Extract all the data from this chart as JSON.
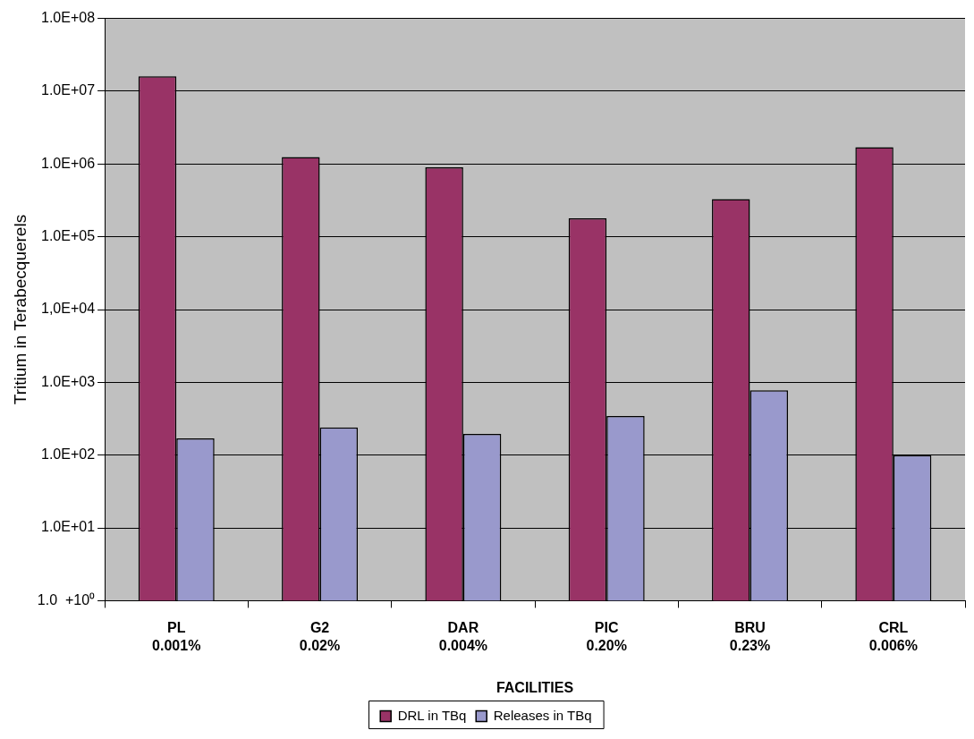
{
  "chart_data": {
    "type": "bar",
    "xlabel": "FACILITIES",
    "ylabel": "Tritium in Terabecquerels",
    "categories": [
      "PL\n0.001%",
      "G2\n0.02%",
      "DAR\n0.004%",
      "PIC\n0.20%",
      "BRU\n0.23%",
      "CRL\n0.006%"
    ],
    "series": [
      {
        "name": "DRL in TBq",
        "color": "#993366",
        "values": [
          16000000,
          1250000,
          900000,
          180000,
          330000,
          1700000
        ]
      },
      {
        "name": "Releases in TBq",
        "color": "#9999cc",
        "values": [
          170,
          240,
          195,
          345,
          780,
          100
        ]
      }
    ],
    "log": true,
    "ylim": [
      1,
      100000000
    ],
    "yticks": [
      {
        "value": 1,
        "label": "1.0  +10⁰"
      },
      {
        "value": 10,
        "label": "1.0E+01"
      },
      {
        "value": 100,
        "label": "1.0E+02"
      },
      {
        "value": 1000,
        "label": "1.0E+03"
      },
      {
        "value": 10000,
        "label": "1,0E+04"
      },
      {
        "value": 100000,
        "label": "1.0E+05"
      },
      {
        "value": 1000000,
        "label": "1.0E+06"
      },
      {
        "value": 10000000,
        "label": "1.0E+07"
      },
      {
        "value": 100000000,
        "label": "1.0E+08"
      }
    ],
    "grid": "y",
    "legend": "bottom"
  }
}
